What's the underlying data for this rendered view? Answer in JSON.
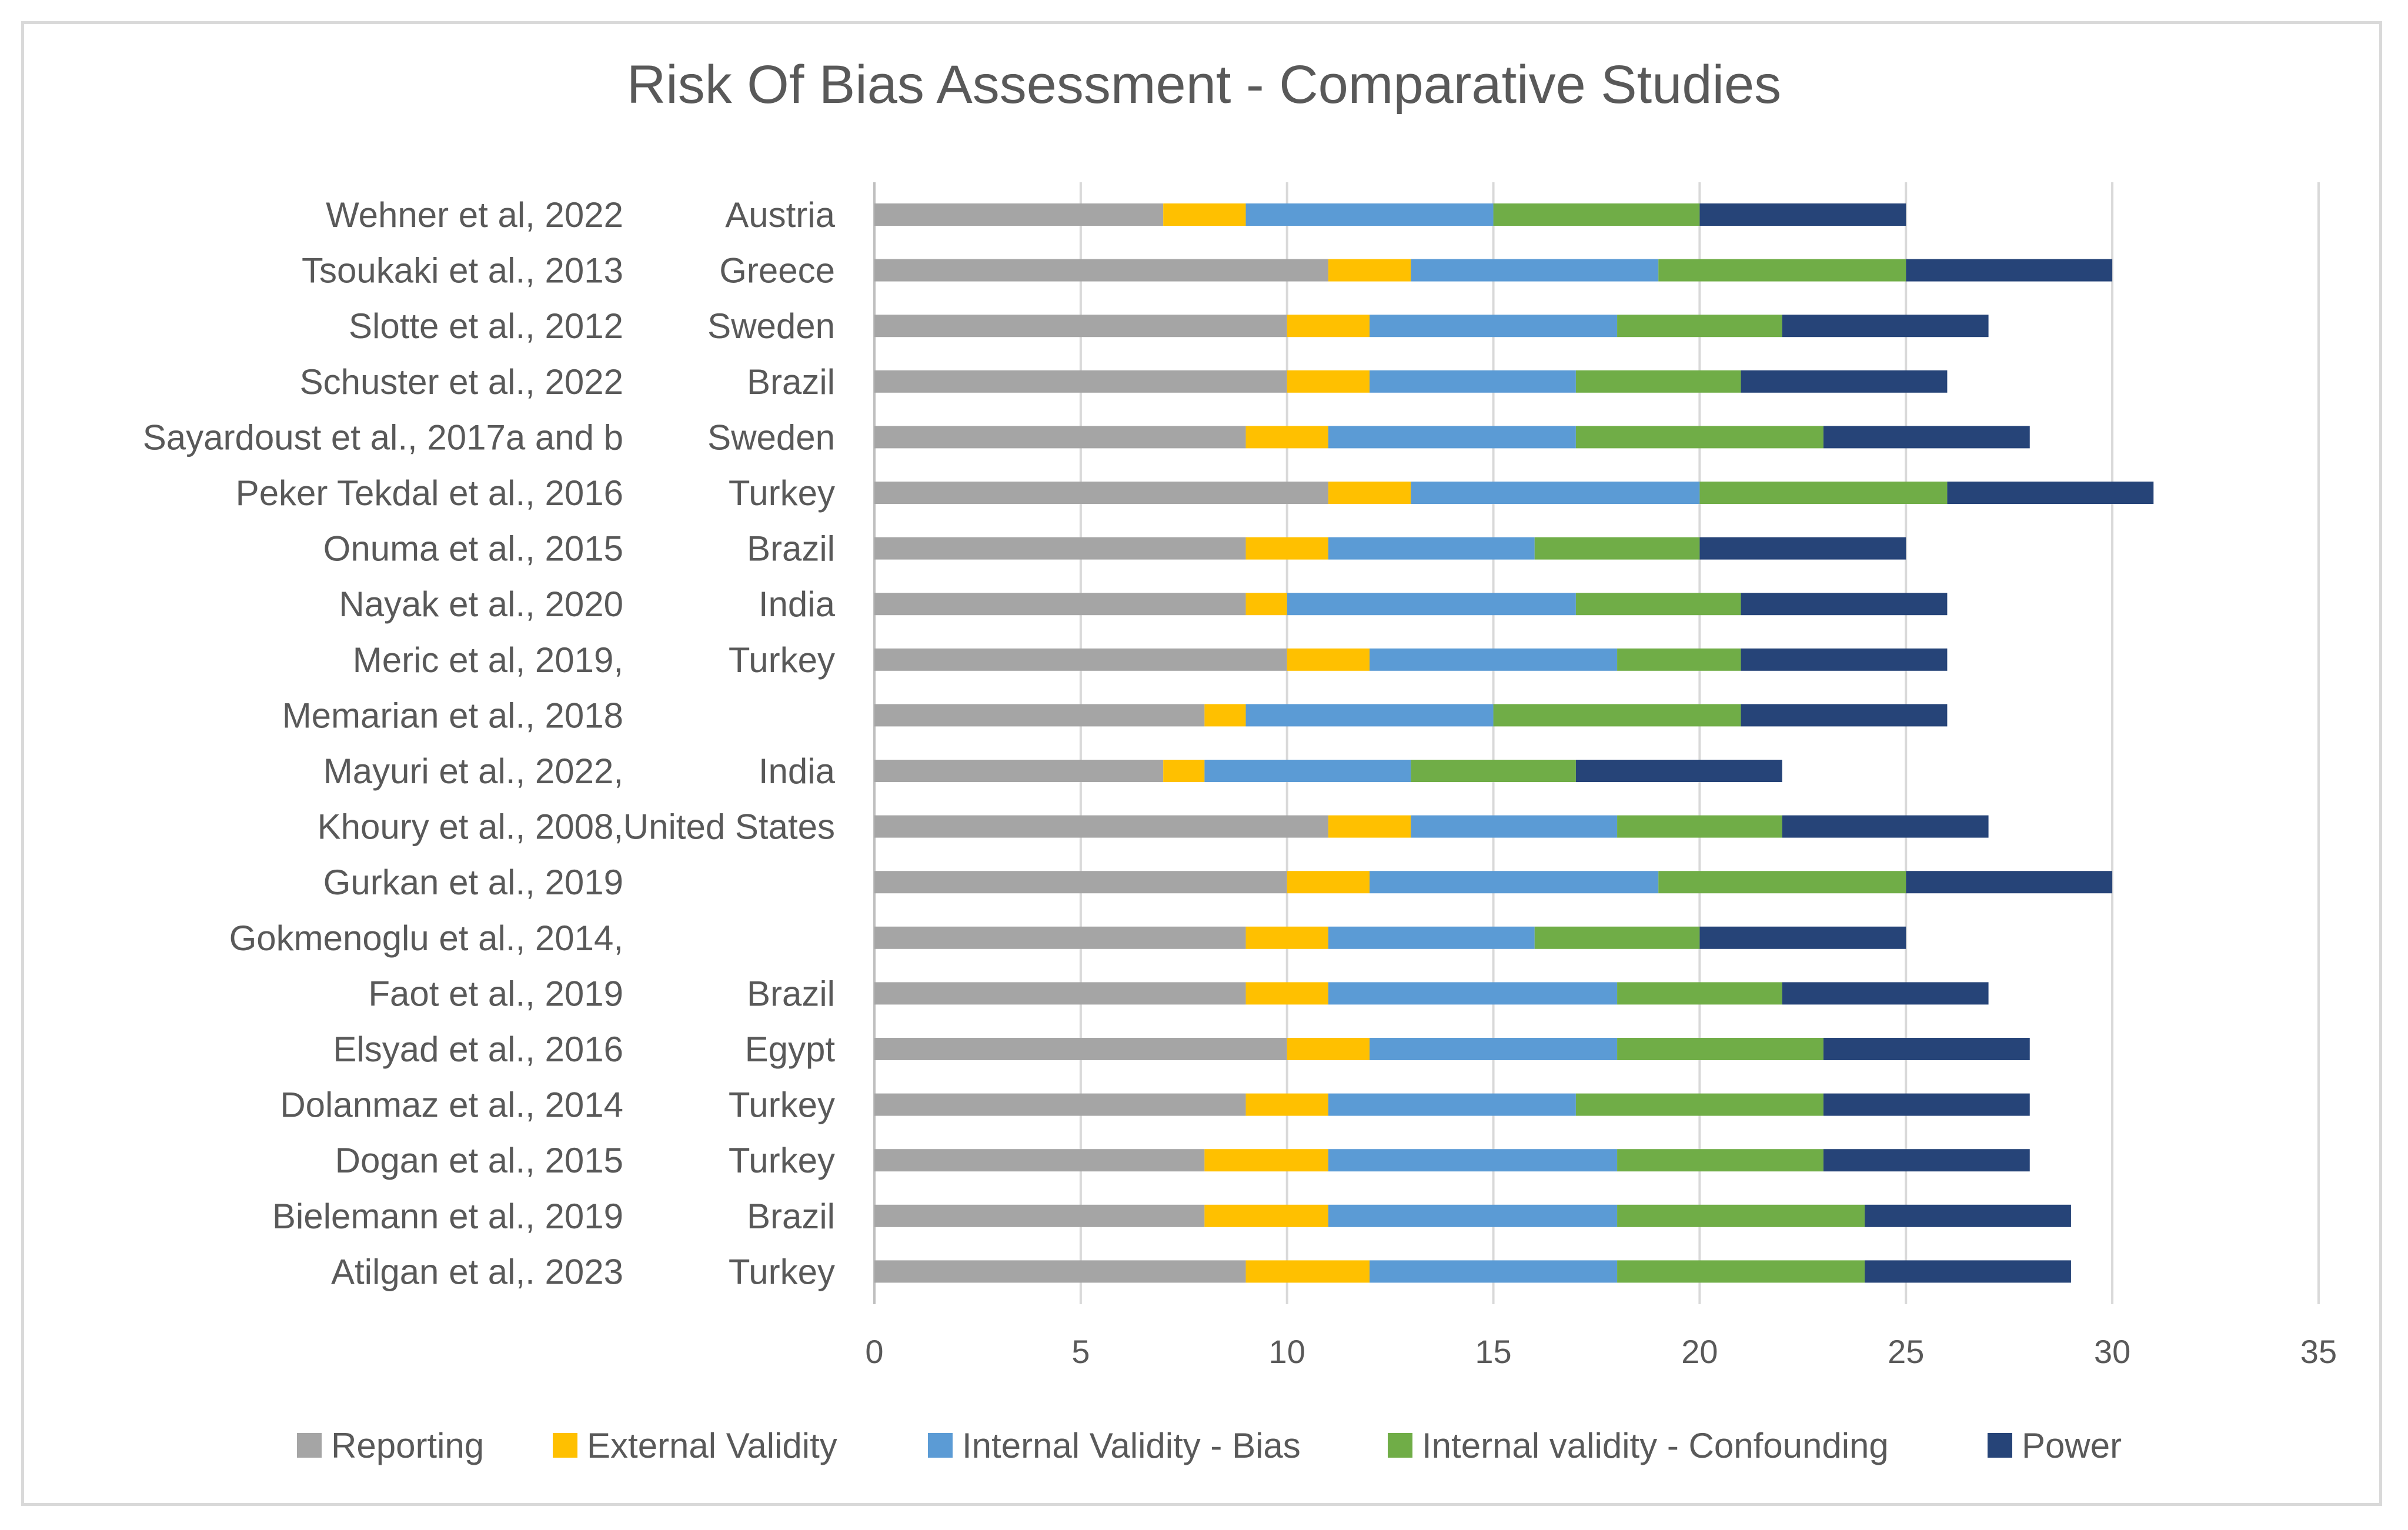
{
  "chart_data": {
    "type": "bar",
    "orientation": "horizontal",
    "stacked": true,
    "title": "Risk Of Bias Assessment - Comparative Studies",
    "xlabel": "",
    "ylabel": "",
    "xlim": [
      0,
      35
    ],
    "xticks": [
      "0",
      "5",
      "10",
      "15",
      "20",
      "25",
      "30",
      "35"
    ],
    "grid": true,
    "legend_position": "bottom",
    "studies": [
      "Wehner et al, 2022",
      "Tsoukaki et al., 2013",
      "Slotte et al., 2012",
      "Schuster et al., 2022",
      "Sayardoust et al., 2017a and b",
      "Peker Tekdal et al., 2016",
      "Onuma et al., 2015",
      "Nayak et al., 2020",
      "Meric et al, 2019,",
      "Memarian et al., 2018",
      "Mayuri et al., 2022,",
      "Khoury et al., 2008,",
      "Gurkan et al., 2019",
      "Gokmenoglu et al., 2014,",
      "Faot et al., 2019",
      "Elsyad et al., 2016",
      "Dolanmaz et al., 2014",
      "Dogan et al., 2015",
      "Bielemann et al., 2019",
      "Atilgan et al,. 2023"
    ],
    "countries": [
      "Austria",
      "Greece",
      "Sweden",
      "Brazil",
      "Sweden",
      "Turkey",
      "Brazil",
      "India",
      "Turkey",
      "",
      "India",
      "United States",
      "",
      "",
      "Brazil",
      "Egypt",
      "Turkey",
      "Turkey",
      "Brazil",
      "Turkey"
    ],
    "series": [
      {
        "name": "Reporting",
        "color": "#a5a5a5",
        "values": [
          7,
          11,
          10,
          10,
          9,
          11,
          9,
          9,
          10,
          8,
          7,
          11,
          10,
          9,
          9,
          10,
          9,
          8,
          8,
          9
        ]
      },
      {
        "name": "External Validity",
        "color": "#ffc000",
        "values": [
          2,
          2,
          2,
          2,
          2,
          2,
          2,
          1,
          2,
          1,
          1,
          2,
          2,
          2,
          2,
          2,
          2,
          3,
          3,
          3
        ]
      },
      {
        "name": "Internal Validity - Bias",
        "color": "#5b9bd5",
        "values": [
          6,
          6,
          6,
          5,
          6,
          7,
          5,
          7,
          6,
          6,
          5,
          5,
          7,
          5,
          7,
          6,
          6,
          7,
          7,
          6
        ]
      },
      {
        "name": "Internal validity - Confounding",
        "color": "#70ad47",
        "values": [
          5,
          6,
          4,
          4,
          6,
          6,
          4,
          4,
          3,
          6,
          4,
          4,
          6,
          4,
          4,
          5,
          6,
          5,
          6,
          6
        ]
      },
      {
        "name": "Power",
        "color": "#264478",
        "values": [
          5,
          5,
          5,
          5,
          5,
          5,
          5,
          5,
          5,
          5,
          5,
          5,
          5,
          5,
          5,
          5,
          5,
          5,
          5,
          5
        ]
      }
    ]
  }
}
